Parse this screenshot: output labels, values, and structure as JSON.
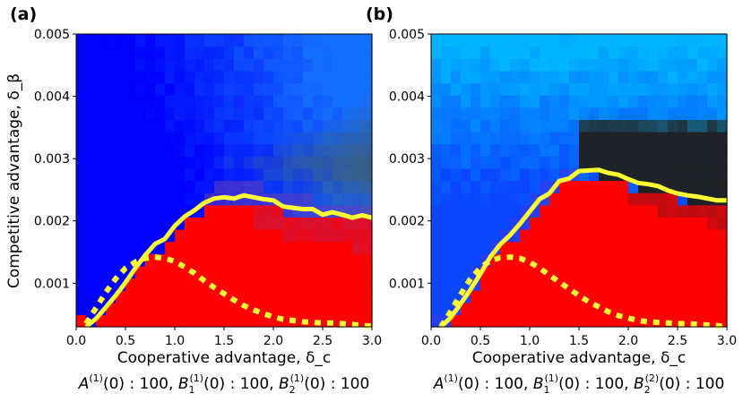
{
  "figure": {
    "ylabel": "Competitive advantage, δ_β"
  },
  "chart_data": [
    {
      "type": "heatmap",
      "panel_label": "(a)",
      "xlabel": "Cooperative advantage, δ_c",
      "xlim": [
        0.0,
        3.0
      ],
      "ylim": [
        0.0003,
        0.005
      ],
      "xticks": [
        "0.0",
        "0.5",
        "1.0",
        "1.5",
        "2.0",
        "2.5",
        "3.0"
      ],
      "yticks": [
        "0.001",
        "0.002",
        "0.003",
        "0.004",
        "0.005"
      ],
      "condition": {
        "a": "A",
        "s1": "(1)",
        "b1": "B",
        "b1sub": "1",
        "s2": "(1)",
        "b2": "B",
        "b2sub": "2",
        "s3": "(1)",
        "text": "(0) : 100, ",
        "text_end": "(0) : 100"
      },
      "legend_colors": {
        "blue": "#0000ff",
        "light_blue": "#00b4ff",
        "red": "#ff0000",
        "dark": "#202225",
        "line": "#ffff33"
      },
      "series": [
        {
          "name": "solid boundary",
          "style": "solid",
          "x": [
            0.1,
            0.2,
            0.3,
            0.4,
            0.5,
            0.6,
            0.7,
            0.8,
            0.9,
            1.0,
            1.1,
            1.2,
            1.3,
            1.4,
            1.5,
            1.6,
            1.7,
            1.8,
            1.9,
            2.0,
            2.1,
            2.2,
            2.3,
            2.4,
            2.5,
            2.6,
            2.7,
            2.8,
            2.9,
            3.0
          ],
          "y": [
            0.0003,
            0.00043,
            0.00061,
            0.0008,
            0.00101,
            0.00124,
            0.00145,
            0.00163,
            0.00171,
            0.00192,
            0.00207,
            0.00217,
            0.00229,
            0.00236,
            0.00238,
            0.00236,
            0.00241,
            0.00238,
            0.00235,
            0.00233,
            0.00223,
            0.00221,
            0.00219,
            0.00219,
            0.0021,
            0.00214,
            0.0021,
            0.00205,
            0.00209,
            0.00205
          ]
        },
        {
          "name": "dotted boundary",
          "style": "dotted",
          "x": [
            0.1,
            0.2,
            0.3,
            0.4,
            0.5,
            0.6,
            0.7,
            0.8,
            0.9,
            1.0,
            1.1,
            1.2,
            1.3,
            1.4,
            1.5,
            1.6,
            1.7,
            1.8,
            1.9,
            2.0,
            2.1,
            2.2,
            2.3,
            2.4,
            2.5,
            2.6,
            2.7,
            2.8,
            2.9,
            3.0
          ],
          "y": [
            0.00035,
            0.0006,
            0.00085,
            0.00107,
            0.00124,
            0.00134,
            0.0014,
            0.00142,
            0.0014,
            0.00135,
            0.00126,
            0.00116,
            0.00104,
            0.00093,
            0.00083,
            0.00073,
            0.00064,
            0.00057,
            0.00051,
            0.00046,
            0.00042,
            0.0004,
            0.00038,
            0.00037,
            0.00036,
            0.00036,
            0.00035,
            0.00034,
            0.00032,
            0.00031
          ]
        }
      ]
    },
    {
      "type": "heatmap",
      "panel_label": "(b)",
      "xlabel": "Cooperative advantage, δ_c",
      "xlim": [
        0.0,
        3.0
      ],
      "ylim": [
        0.0003,
        0.005
      ],
      "xticks": [
        "0.0",
        "0.5",
        "1.0",
        "1.5",
        "2.0",
        "2.5",
        "3.0"
      ],
      "yticks": [
        "0.001",
        "0.002",
        "0.003",
        "0.004",
        "0.005"
      ],
      "condition": {
        "a": "A",
        "s1": "(1)",
        "b1": "B",
        "b1sub": "1",
        "s2": "(1)",
        "b2": "B",
        "b2sub": "2",
        "s3": "(2)",
        "text": "(0) : 100, ",
        "text_end": "(0) : 100"
      },
      "legend_colors": {
        "blue": "#0000ff",
        "light_blue": "#00b4ff",
        "red": "#ff0000",
        "dark": "#202225",
        "line": "#ffff33"
      },
      "series": [
        {
          "name": "solid boundary",
          "style": "solid",
          "x": [
            0.1,
            0.2,
            0.3,
            0.4,
            0.5,
            0.6,
            0.7,
            0.8,
            0.9,
            1.0,
            1.1,
            1.2,
            1.3,
            1.4,
            1.5,
            1.6,
            1.7,
            1.8,
            1.9,
            2.0,
            2.1,
            2.2,
            2.3,
            2.4,
            2.5,
            2.6,
            2.7,
            2.8,
            2.9,
            3.0
          ],
          "y": [
            0.0003,
            0.00045,
            0.00067,
            0.0009,
            0.00115,
            0.00142,
            0.00162,
            0.00177,
            0.00195,
            0.00215,
            0.00235,
            0.00244,
            0.00264,
            0.00268,
            0.0028,
            0.00281,
            0.00282,
            0.00277,
            0.00274,
            0.00267,
            0.00261,
            0.00259,
            0.00256,
            0.00249,
            0.00244,
            0.00241,
            0.00239,
            0.00236,
            0.00233,
            0.00233
          ]
        },
        {
          "name": "dotted boundary",
          "style": "dotted",
          "x": [
            0.1,
            0.2,
            0.3,
            0.4,
            0.5,
            0.6,
            0.7,
            0.8,
            0.9,
            1.0,
            1.1,
            1.2,
            1.3,
            1.4,
            1.5,
            1.6,
            1.7,
            1.8,
            1.9,
            2.0,
            2.1,
            2.2,
            2.3,
            2.4,
            2.5,
            2.6,
            2.7,
            2.8,
            2.9,
            3.0
          ],
          "y": [
            0.0003,
            0.00055,
            0.00082,
            0.00107,
            0.00125,
            0.00136,
            0.00141,
            0.00142,
            0.0014,
            0.00134,
            0.00124,
            0.00113,
            0.00102,
            0.00091,
            0.0008,
            0.0007,
            0.00062,
            0.00054,
            0.00048,
            0.00044,
            0.0004,
            0.00038,
            0.00037,
            0.00036,
            0.00035,
            0.00035,
            0.00034,
            0.00033,
            0.00032,
            0.0003
          ]
        }
      ]
    }
  ]
}
